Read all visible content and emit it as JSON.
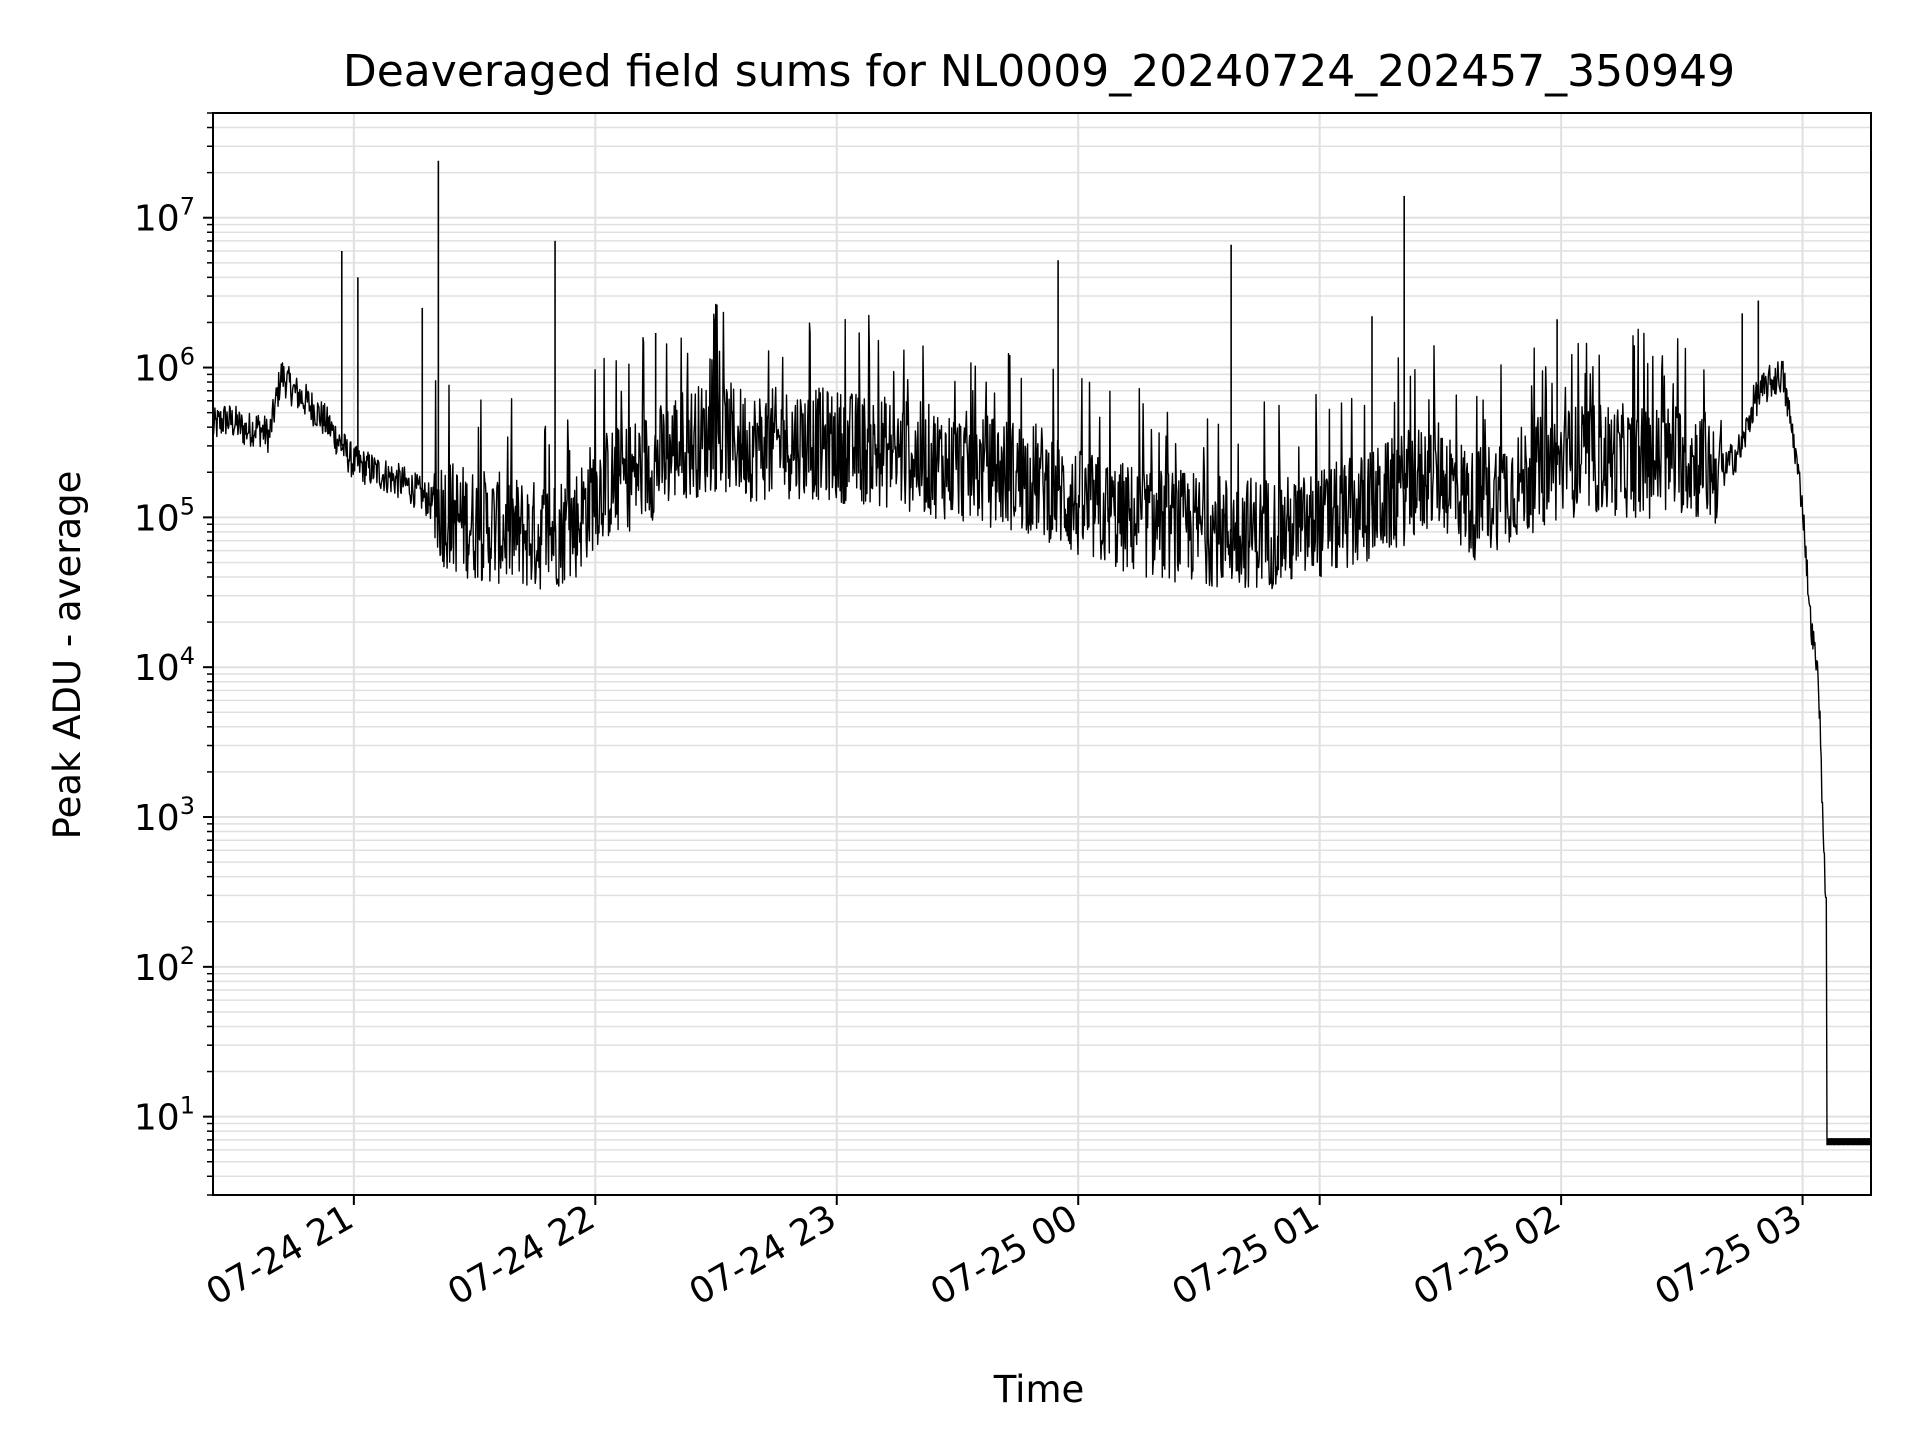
{
  "chart_data": {
    "type": "line",
    "title": "Deaveraged field sums for NL0009_20240724_202457_350949",
    "xlabel": "Time",
    "ylabel": "Peak ADU - average",
    "y_scale": "log",
    "ylim": [
      3,
      50000000
    ],
    "xlim": [
      "2024-07-24 20:25",
      "2024-07-25 03:17"
    ],
    "grid": true,
    "line_color": "#000000",
    "grid_color": "#e0e0e0",
    "x_ticks": [
      {
        "value": "2024-07-24 21:00",
        "label": "07-24 21"
      },
      {
        "value": "2024-07-24 22:00",
        "label": "07-24 22"
      },
      {
        "value": "2024-07-24 23:00",
        "label": "07-24 23"
      },
      {
        "value": "2024-07-25 00:00",
        "label": "07-25 00"
      },
      {
        "value": "2024-07-25 01:00",
        "label": "07-25 01"
      },
      {
        "value": "2024-07-25 02:00",
        "label": "07-25 02"
      },
      {
        "value": "2024-07-25 03:00",
        "label": "07-25 03"
      }
    ],
    "y_ticks": [
      {
        "value": 10,
        "base": "10",
        "exp": "1"
      },
      {
        "value": 100,
        "base": "10",
        "exp": "2"
      },
      {
        "value": 1000,
        "base": "10",
        "exp": "3"
      },
      {
        "value": 10000,
        "base": "10",
        "exp": "4"
      },
      {
        "value": 100000,
        "base": "10",
        "exp": "5"
      },
      {
        "value": 1000000,
        "base": "10",
        "exp": "6"
      },
      {
        "value": 10000000,
        "base": "10",
        "exp": "7"
      }
    ],
    "series": [
      {
        "x": [
          "2024-07-24 20:25",
          "2024-07-24 20:28",
          "2024-07-24 20:31",
          "2024-07-24 20:33",
          "2024-07-24 20:36",
          "2024-07-24 20:39",
          "2024-07-24 20:42",
          "2024-07-24 20:45",
          "2024-07-24 20:48",
          "2024-07-24 20:51",
          "2024-07-24 20:54",
          "2024-07-24 20:57",
          "2024-07-24 20:59",
          "2024-07-24 21:00",
          "2024-07-24 21:02",
          "2024-07-24 21:06",
          "2024-07-24 21:10",
          "2024-07-24 21:14",
          "2024-07-24 21:17",
          "2024-07-24 21:20",
          "2024-07-24 21:25",
          "2024-07-24 21:30",
          "2024-07-24 21:35",
          "2024-07-24 21:40",
          "2024-07-24 21:45",
          "2024-07-24 21:50",
          "2024-07-24 21:55",
          "2024-07-24 22:00",
          "2024-07-24 22:10",
          "2024-07-24 22:17",
          "2024-07-24 22:20",
          "2024-07-24 22:30",
          "2024-07-24 22:40",
          "2024-07-24 22:50",
          "2024-07-24 23:00",
          "2024-07-24 23:10",
          "2024-07-24 23:20",
          "2024-07-24 23:30",
          "2024-07-24 23:40",
          "2024-07-24 23:50",
          "2024-07-24 23:55",
          "2024-07-25 00:00",
          "2024-07-25 00:10",
          "2024-07-25 00:20",
          "2024-07-25 00:30",
          "2024-07-25 00:38",
          "2024-07-25 00:45",
          "2024-07-25 00:55",
          "2024-07-25 01:00",
          "2024-07-25 01:10",
          "2024-07-25 01:20",
          "2024-07-25 01:30",
          "2024-07-25 01:38",
          "2024-07-25 01:45",
          "2024-07-25 01:55",
          "2024-07-25 02:00",
          "2024-07-25 02:10",
          "2024-07-25 02:20",
          "2024-07-25 02:30",
          "2024-07-25 02:40",
          "2024-07-25 02:45",
          "2024-07-25 02:48",
          "2024-07-25 02:52",
          "2024-07-25 02:55",
          "2024-07-25 02:58",
          "2024-07-25 03:00",
          "2024-07-25 03:02",
          "2024-07-25 03:04",
          "2024-07-25 03:05",
          "2024-07-25 03:06",
          "2024-07-25 03:06",
          "2024-07-25 03:10",
          "2024-07-25 03:17"
        ],
        "y": [
          400000,
          450000,
          420000,
          380000,
          400000,
          350000,
          900000,
          700000,
          600000,
          500000,
          400000,
          300000,
          250000,
          230000,
          220000,
          200000,
          180000,
          160000,
          140000,
          120000,
          100000,
          90000,
          85000,
          80000,
          75000,
          80000,
          90000,
          150000,
          200000,
          250000,
          300000,
          350000,
          300000,
          320000,
          300000,
          280000,
          250000,
          220000,
          200000,
          180000,
          150000,
          120000,
          100000,
          90000,
          85000,
          80000,
          80000,
          80000,
          90000,
          110000,
          150000,
          200000,
          120000,
          150000,
          200000,
          230000,
          250000,
          230000,
          250000,
          200000,
          300000,
          600000,
          800000,
          900000,
          300000,
          120000,
          20000,
          8000,
          1000,
          200,
          6.5,
          6.5,
          6.5
        ]
      }
    ],
    "spikes": [
      {
        "x": "2024-07-24 20:57",
        "y": 6000000
      },
      {
        "x": "2024-07-24 21:01",
        "y": 4000000
      },
      {
        "x": "2024-07-24 21:17",
        "y": 2500000
      },
      {
        "x": "2024-07-24 21:21",
        "y": 24000000
      },
      {
        "x": "2024-07-24 21:50",
        "y": 7000000
      },
      {
        "x": "2024-07-24 22:15",
        "y": 1700000
      },
      {
        "x": "2024-07-24 23:55",
        "y": 5200000
      },
      {
        "x": "2024-07-25 00:38",
        "y": 6600000
      },
      {
        "x": "2024-07-25 01:13",
        "y": 2200000
      },
      {
        "x": "2024-07-25 01:21",
        "y": 14000000
      },
      {
        "x": "2024-07-25 01:59",
        "y": 2100000
      },
      {
        "x": "2024-07-25 02:45",
        "y": 2300000
      },
      {
        "x": "2024-07-25 02:49",
        "y": 2800000
      }
    ]
  }
}
